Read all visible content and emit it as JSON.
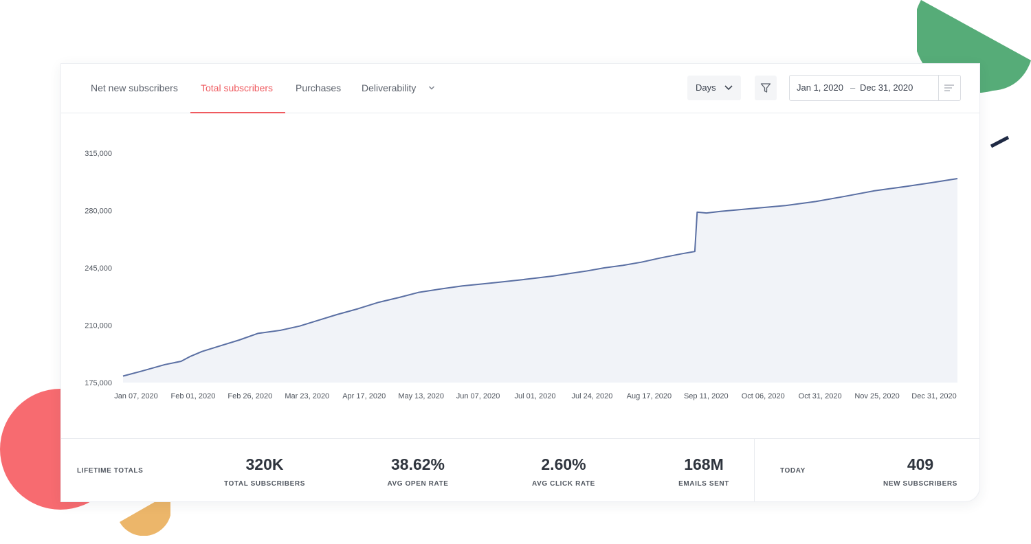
{
  "tabs": [
    {
      "label": "Net new subscribers",
      "active": false
    },
    {
      "label": "Total subscribers",
      "active": true
    },
    {
      "label": "Purchases",
      "active": false
    },
    {
      "label": "Deliverability",
      "active": false,
      "has_dropdown": true
    }
  ],
  "controls": {
    "granularity": "Days",
    "filter_icon": "filter-icon",
    "date_start": "Jan 1, 2020",
    "date_separator": "–",
    "date_end": "Dec 31, 2020",
    "menu_icon": "menu-lines-icon"
  },
  "colors": {
    "accent": "#ef5a5f",
    "line": "#5a6fa3",
    "area": "#f1f3f8",
    "deco_green": "#56ac78",
    "deco_red": "#f76b70",
    "deco_yellow": "#ecb66a",
    "deco_navy": "#1f2a44"
  },
  "chart_data": {
    "type": "area",
    "y_ticks": [
      "315,000",
      "280,000",
      "245,000",
      "210,000",
      "175,000"
    ],
    "y_tick_values": [
      315000,
      280000,
      245000,
      210000,
      175000
    ],
    "ylim": [
      175000,
      315000
    ],
    "x_ticks": [
      "Jan 07, 2020",
      "Feb 01, 2020",
      "Feb 26, 2020",
      "Mar 23, 2020",
      "Apr 17, 2020",
      "May 13, 2020",
      "Jun 07, 2020",
      "Jul 01, 2020",
      "Jul 24, 2020",
      "Aug 17, 2020",
      "Sep 11, 2020",
      "Oct 06, 2020",
      "Oct 31, 2020",
      "Nov 25, 2020",
      "Dec 31, 2020"
    ],
    "grid": false,
    "series": [
      {
        "x": [
          "2020-01-07",
          "2020-01-15",
          "2020-01-25",
          "2020-02-01",
          "2020-02-05",
          "2020-02-10",
          "2020-02-18",
          "2020-02-26",
          "2020-03-05",
          "2020-03-15",
          "2020-03-23",
          "2020-03-31",
          "2020-04-08",
          "2020-04-17",
          "2020-04-26",
          "2020-05-05",
          "2020-05-13",
          "2020-05-22",
          "2020-06-01",
          "2020-06-07",
          "2020-06-15",
          "2020-06-25",
          "2020-07-01",
          "2020-07-10",
          "2020-07-17",
          "2020-07-24",
          "2020-08-01",
          "2020-08-09",
          "2020-08-17",
          "2020-08-25",
          "2020-09-03",
          "2020-09-09",
          "2020-09-10",
          "2020-09-14",
          "2020-09-20",
          "2020-10-06",
          "2020-10-18",
          "2020-10-31",
          "2020-11-12",
          "2020-11-25",
          "2020-12-08",
          "2020-12-20",
          "2020-12-31"
        ],
        "y": [
          179000,
          182000,
          186000,
          188000,
          191000,
          194000,
          197500,
          201000,
          205000,
          207000,
          209500,
          213000,
          216500,
          220000,
          224000,
          227000,
          230000,
          232000,
          234000,
          234800,
          236000,
          237500,
          238500,
          240000,
          241500,
          243000,
          245000,
          246500,
          248500,
          251000,
          253500,
          255000,
          279000,
          278500,
          279500,
          281500,
          283000,
          285500,
          288500,
          292000,
          294500,
          297000,
          299500
        ]
      }
    ]
  },
  "stats": {
    "lifetime_label": "LIFETIME TOTALS",
    "items": [
      {
        "value": "320K",
        "caption": "TOTAL SUBSCRIBERS"
      },
      {
        "value": "38.62%",
        "caption": "AVG OPEN RATE"
      },
      {
        "value": "2.60%",
        "caption": "AVG CLICK RATE"
      },
      {
        "value": "168M",
        "caption": "EMAILS SENT"
      }
    ],
    "today_label": "TODAY",
    "today": {
      "value": "409",
      "caption": "NEW SUBSCRIBERS"
    }
  }
}
